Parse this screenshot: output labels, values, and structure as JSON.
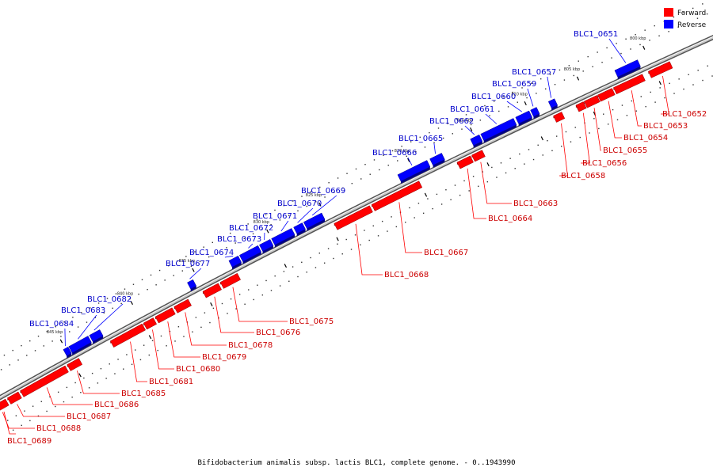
{
  "caption": "Bifidobacterium animalis subsp. lactis BLC1, complete genome. - 0..1943990",
  "legend": {
    "forward_label": "Forward",
    "reverse_label": "Reverse",
    "forward_color": "#ff0000",
    "reverse_color": "#0000ff"
  },
  "ticks": [
    "800 kbp",
    "805 kbp",
    "810 kbp",
    "815 kbp",
    "820 kbp",
    "825 kbp",
    "830 kbp",
    "835 kbp",
    "840 kbp",
    "845 kbp"
  ],
  "forward_genes": [
    {
      "name": "BLC1_0652",
      "t0": 0.908,
      "t1": 0.936
    },
    {
      "name": "BLC1_0653",
      "t0": 0.862,
      "t1": 0.9
    },
    {
      "name": "BLC1_0654",
      "t0": 0.841,
      "t1": 0.86
    },
    {
      "name": "BLC1_0655",
      "t0": 0.823,
      "t1": 0.84
    },
    {
      "name": "BLC1_0656",
      "t0": 0.812,
      "t1": 0.822
    },
    {
      "name": "BLC1_0658",
      "t0": 0.782,
      "t1": 0.793
    },
    {
      "name": "BLC1_0663",
      "t0": 0.672,
      "t1": 0.686
    },
    {
      "name": "BLC1_0664",
      "t0": 0.652,
      "t1": 0.67
    },
    {
      "name": "BLC1_0667",
      "t0": 0.535,
      "t1": 0.6
    },
    {
      "name": "BLC1_0668",
      "t0": 0.483,
      "t1": 0.532
    },
    {
      "name": "BLC1_0675",
      "t0": 0.323,
      "t1": 0.347
    },
    {
      "name": "BLC1_0676",
      "t0": 0.298,
      "t1": 0.32
    },
    {
      "name": "BLC1_0678",
      "t0": 0.257,
      "t1": 0.277
    },
    {
      "name": "BLC1_0679",
      "t0": 0.23,
      "t1": 0.254
    },
    {
      "name": "BLC1_0680",
      "t0": 0.213,
      "t1": 0.227
    },
    {
      "name": "BLC1_0681",
      "t0": 0.165,
      "t1": 0.211
    },
    {
      "name": "BLC1_0685",
      "t0": 0.102,
      "t1": 0.119
    },
    {
      "name": "BLC1_0686",
      "t0": 0.033,
      "t1": 0.099
    },
    {
      "name": "BLC1_0687",
      "t0": 0.014,
      "t1": 0.03
    },
    {
      "name": "BLC1_0688",
      "t0": -0.01,
      "t1": 0.011
    }
  ],
  "reverse_genes": [
    {
      "name": "BLC1_0651",
      "t0": 0.872,
      "t1": 0.902
    },
    {
      "name": "BLC1_0657",
      "t0": 0.784,
      "t1": 0.792
    },
    {
      "name": "BLC1_0659",
      "t0": 0.76,
      "t1": 0.768
    },
    {
      "name": "BLC1_0660",
      "t0": 0.74,
      "t1": 0.758
    },
    {
      "name": "BLC1_0661",
      "t0": 0.693,
      "t1": 0.737
    },
    {
      "name": "BLC1_0662",
      "t0": 0.679,
      "t1": 0.691
    },
    {
      "name": "BLC1_0665",
      "t0": 0.624,
      "t1": 0.64
    },
    {
      "name": "BLC1_0666",
      "t0": 0.58,
      "t1": 0.62
    },
    {
      "name": "BLC1_0669",
      "t0": 0.45,
      "t1": 0.475
    },
    {
      "name": "BLC1_0670",
      "t0": 0.436,
      "t1": 0.448
    },
    {
      "name": "BLC1_0671",
      "t0": 0.405,
      "t1": 0.433
    },
    {
      "name": "BLC1_0672",
      "t0": 0.388,
      "t1": 0.403
    },
    {
      "name": "BLC1_0673",
      "t0": 0.36,
      "t1": 0.386
    },
    {
      "name": "BLC1_0674",
      "t0": 0.345,
      "t1": 0.358
    },
    {
      "name": "BLC1_0677",
      "t0": 0.286,
      "t1": 0.294
    },
    {
      "name": "BLC1_0682",
      "t0": 0.145,
      "t1": 0.16
    },
    {
      "name": "BLC1_0683",
      "t0": 0.115,
      "t1": 0.143
    },
    {
      "name": "BLC1_0684",
      "t0": 0.107,
      "t1": 0.114
    }
  ],
  "extra_forward_label": "BLC1_0689"
}
